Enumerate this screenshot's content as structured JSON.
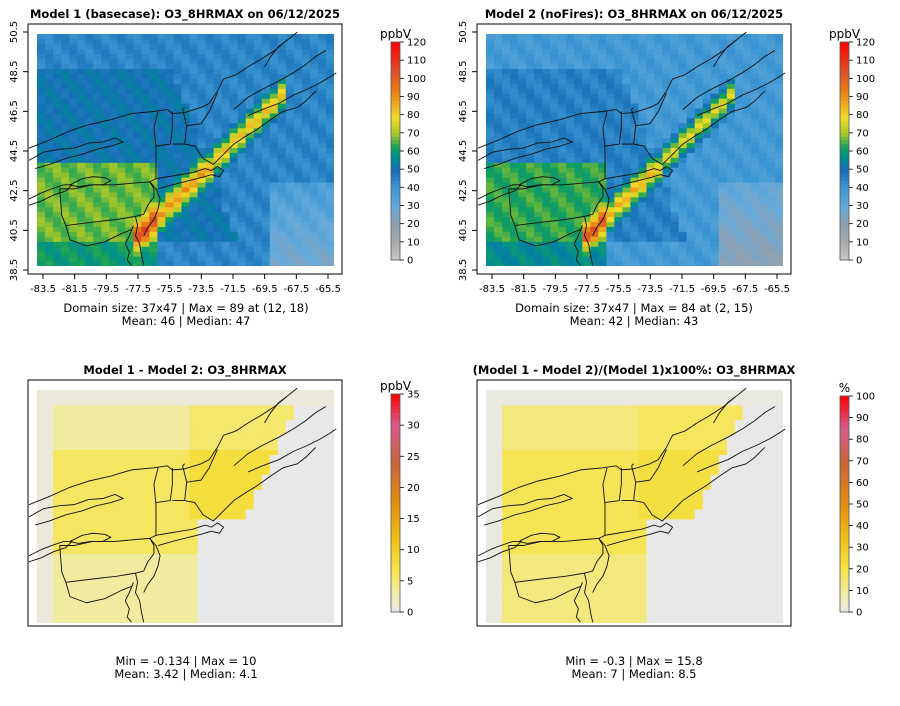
{
  "chart_data": [
    {
      "type": "heatmap",
      "title": "Model 1 (basecase): O3_8HRMAX on 06/12/2025",
      "x_ticks": [
        "-83.5",
        "-81.5",
        "-79.5",
        "-77.5",
        "-75.5",
        "-73.5",
        "-71.5",
        "-69.5",
        "-67.5",
        "-65.5"
      ],
      "y_ticks": [
        "38.5",
        "40.5",
        "42.5",
        "44.5",
        "46.5",
        "48.5",
        "50.5"
      ],
      "xlim": [
        -83.5,
        -65.5
      ],
      "ylim": [
        38.5,
        50.5
      ],
      "colorbar": {
        "unit": "ppbV",
        "ticks": [
          "0",
          "10",
          "20",
          "30",
          "40",
          "50",
          "60",
          "70",
          "80",
          "90",
          "100",
          "110",
          "120"
        ],
        "range": [
          0,
          120
        ]
      },
      "field": {
        "background": 44,
        "peak": 89,
        "plume_peak": 89,
        "land": 55,
        "south": 60
      },
      "stats": {
        "line1": "Domain size: 37x47 | Max = 89 at (12, 18)",
        "line2": "Mean: 46 |  Median: 47"
      }
    },
    {
      "type": "heatmap",
      "title": "Model 2 (noFires): O3_8HRMAX on 06/12/2025",
      "x_ticks": [
        "-83.5",
        "-81.5",
        "-79.5",
        "-77.5",
        "-75.5",
        "-73.5",
        "-71.5",
        "-69.5",
        "-67.5",
        "-65.5"
      ],
      "y_ticks": [
        "38.5",
        "40.5",
        "42.5",
        "44.5",
        "46.5",
        "48.5",
        "50.5"
      ],
      "xlim": [
        -83.5,
        -65.5
      ],
      "ylim": [
        38.5,
        50.5
      ],
      "colorbar": {
        "unit": "ppbV",
        "ticks": [
          "0",
          "10",
          "20",
          "30",
          "40",
          "50",
          "60",
          "70",
          "80",
          "90",
          "100",
          "110",
          "120"
        ],
        "range": [
          0,
          120
        ]
      },
      "field": {
        "background": 38,
        "peak": 84,
        "plume_peak": 84,
        "land": 50,
        "south": 56
      },
      "stats": {
        "line1": "Domain size: 37x47 | Max = 84 at (2, 15)",
        "line2": "Mean: 42 |  Median: 43"
      }
    },
    {
      "type": "heatmap",
      "title": "Model 1 - Model 2: O3_8HRMAX",
      "colorbar": {
        "unit": "ppbV",
        "ticks": [
          "0",
          "5",
          "10",
          "15",
          "20",
          "25",
          "30",
          "35"
        ],
        "range": [
          0,
          35
        ]
      },
      "field": {
        "min": -0.134,
        "max": 10,
        "mean": 3.42
      },
      "stats": {
        "line1": "Min = -0.134 | Max = 10",
        "line2": "Mean: 3.42 |  Median: 4.1"
      }
    },
    {
      "type": "heatmap",
      "title": "(Model 1 - Model 2)/(Model 1)x100%: O3_8HRMAX",
      "colorbar": {
        "unit": "%",
        "ticks": [
          "0",
          "10",
          "20",
          "30",
          "40",
          "50",
          "60",
          "70",
          "80",
          "90",
          "100"
        ],
        "range": [
          0,
          100
        ]
      },
      "field": {
        "min": -0.3,
        "max": 15.8,
        "mean": 7
      },
      "stats": {
        "line1": "Min = -0.3 | Max = 15.8",
        "line2": "Mean: 7 |  Median: 8.5"
      }
    }
  ]
}
